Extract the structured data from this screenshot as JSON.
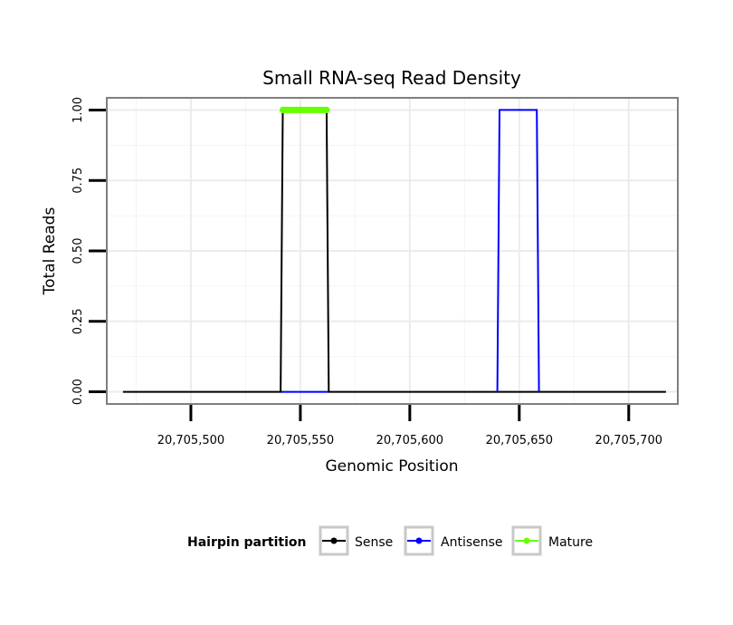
{
  "chart_data": {
    "type": "line",
    "title": "Small RNA-seq Read Density",
    "xlabel": "Genomic Position",
    "ylabel": "Total Reads",
    "xlim": [
      20705462,
      20705722
    ],
    "ylim": [
      -0.04,
      1.04
    ],
    "x_ticks": [
      20705500,
      20705550,
      20705600,
      20705650,
      20705700
    ],
    "x_tick_labels": [
      "20,705,500",
      "20,705,550",
      "20,705,600",
      "20,705,650",
      "20,705,700"
    ],
    "y_ticks": [
      0,
      0.25,
      0.5,
      0.75,
      1.0
    ],
    "y_tick_labels": [
      "0.00",
      "0.25",
      "0.50",
      "0.75",
      "1.00"
    ],
    "grid": true,
    "legend": {
      "title": "Hairpin partition",
      "position": "bottom",
      "entries": [
        "Sense",
        "Antisense",
        "Mature"
      ]
    },
    "series": [
      {
        "name": "Sense",
        "color": "#000000",
        "points": [
          [
            20705469,
            0
          ],
          [
            20705541,
            0
          ],
          [
            20705542,
            1
          ],
          [
            20705562,
            1
          ],
          [
            20705563,
            0
          ],
          [
            20705717,
            0
          ]
        ]
      },
      {
        "name": "Antisense",
        "color": "#0000ff",
        "points": [
          [
            20705541,
            0
          ],
          [
            20705563,
            0
          ]
        ],
        "points2": [
          [
            20705640,
            0
          ],
          [
            20705641,
            1
          ],
          [
            20705658,
            1
          ],
          [
            20705659,
            0
          ]
        ]
      },
      {
        "name": "Mature",
        "color": "#66ff00",
        "points": [
          [
            20705542,
            1
          ],
          [
            20705562,
            1
          ]
        ]
      }
    ]
  }
}
